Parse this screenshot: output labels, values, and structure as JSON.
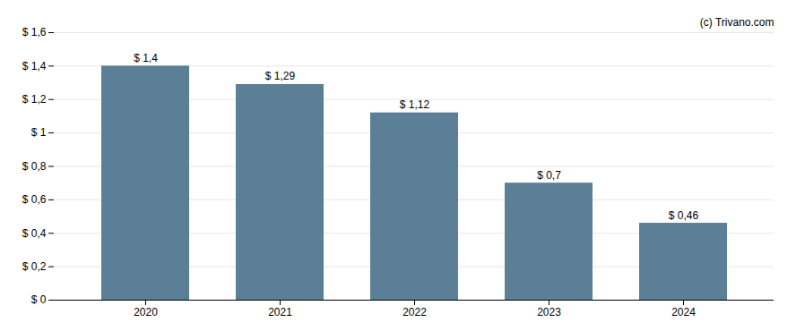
{
  "chart_data": {
    "type": "bar",
    "categories": [
      "2020",
      "2021",
      "2022",
      "2023",
      "2024"
    ],
    "values": [
      1.4,
      1.29,
      1.12,
      0.7,
      0.46
    ],
    "value_labels": [
      "$ 1,4",
      "$ 1,29",
      "$ 1,12",
      "$ 0,7",
      "$ 0,46"
    ],
    "data_labels": true,
    "color": "#5b7f97",
    "ylim": [
      0,
      1.6
    ],
    "yticks": [
      {
        "value": 0,
        "label": "$ 0"
      },
      {
        "value": 0.2,
        "label": "$ 0,2"
      },
      {
        "value": 0.4,
        "label": "$ 0,4"
      },
      {
        "value": 0.6,
        "label": "$ 0,6"
      },
      {
        "value": 0.8,
        "label": "$ 0,8"
      },
      {
        "value": 1.0,
        "label": "$ 1"
      },
      {
        "value": 1.2,
        "label": "$ 1,2"
      },
      {
        "value": 1.4,
        "label": "$ 1,4"
      },
      {
        "value": 1.6,
        "label": "$ 1,6"
      }
    ],
    "grid": true,
    "annotations": [
      "(c) Trivano.com"
    ]
  }
}
